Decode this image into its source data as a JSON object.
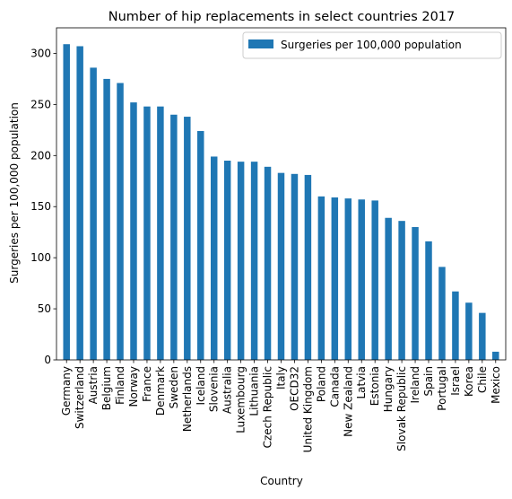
{
  "chart_data": {
    "type": "bar",
    "title": "Number of hip replacements in select countries 2017",
    "xlabel": "Country",
    "ylabel": "Surgeries per 100,000 population",
    "ylim": [
      0,
      325
    ],
    "yticks": [
      0,
      50,
      100,
      150,
      200,
      250,
      300
    ],
    "grid": false,
    "legend_position": "top-right",
    "bar_color": "#1f77b4",
    "categories": [
      "Germany",
      "Switzerland",
      "Austria",
      "Belgium",
      "Finland",
      "Norway",
      "France",
      "Denmark",
      "Sweden",
      "Netherlands",
      "Iceland",
      "Slovenia",
      "Australia",
      "Luxembourg",
      "Lithuania",
      "Czech Republic",
      "Italy",
      "OECD32",
      "United Kingdom",
      "Poland",
      "Canada",
      "New Zealand",
      "Latvia",
      "Estonia",
      "Hungary",
      "Slovak Republic",
      "Ireland",
      "Spain",
      "Portugal",
      "Israel",
      "Korea",
      "Chile",
      "Mexico"
    ],
    "series": [
      {
        "name": "Surgeries per 100,000 population",
        "values": [
          309,
          307,
          286,
          275,
          271,
          252,
          248,
          248,
          240,
          238,
          224,
          199,
          195,
          194,
          194,
          189,
          183,
          182,
          181,
          160,
          159,
          158,
          157,
          156,
          139,
          136,
          130,
          116,
          91,
          67,
          56,
          46,
          8
        ]
      }
    ]
  }
}
